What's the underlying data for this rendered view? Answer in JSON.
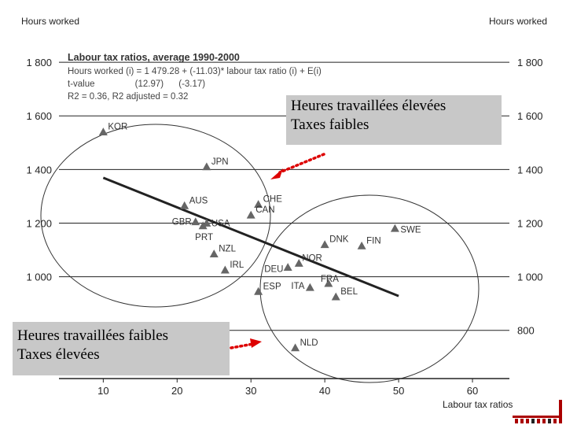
{
  "chart_data": {
    "type": "scatter",
    "title": "Labour tax ratios, average 1990-2000",
    "stats": [
      "Hours worked (i) = 1 479.28 + (-11.03)* labour tax ratio (i) + E(i)",
      "t-value                (12.97)      (-3.17)",
      "R2 = 0.36,  R2 adjusted = 0.32"
    ],
    "ylabel_left": "Hours worked",
    "ylabel_right": "Hours worked",
    "xlabel": "Labour tax ratios",
    "xlim": [
      4,
      65
    ],
    "ylim": [
      620,
      1900
    ],
    "xticks": [
      10,
      20,
      30,
      40,
      50,
      60
    ],
    "yticks": [
      800,
      1000,
      1200,
      1400,
      1600,
      1800
    ],
    "ytick_labels": [
      "800",
      "1 000",
      "1 200",
      "1 400",
      "1 600",
      "1 800"
    ],
    "grid": true,
    "points": [
      {
        "label": "KOR",
        "x": 10,
        "y": 1540
      },
      {
        "label": "JPN",
        "x": 24,
        "y": 1410
      },
      {
        "label": "AUS",
        "x": 21,
        "y": 1265
      },
      {
        "label": "CHE",
        "x": 31,
        "y": 1270
      },
      {
        "label": "CAN",
        "x": 30,
        "y": 1230
      },
      {
        "label": "GBR",
        "x": 22.5,
        "y": 1205
      },
      {
        "label": "USA",
        "x": 24,
        "y": 1200
      },
      {
        "label": "PRT",
        "x": 23.5,
        "y": 1190
      },
      {
        "label": "SWE",
        "x": 49.5,
        "y": 1180
      },
      {
        "label": "DNK",
        "x": 40,
        "y": 1120
      },
      {
        "label": "FIN",
        "x": 45,
        "y": 1115
      },
      {
        "label": "NZL",
        "x": 25,
        "y": 1085
      },
      {
        "label": "NOR",
        "x": 36.5,
        "y": 1050
      },
      {
        "label": "DEU",
        "x": 35,
        "y": 1035
      },
      {
        "label": "IRL",
        "x": 26.5,
        "y": 1025
      },
      {
        "label": "FRA",
        "x": 40.5,
        "y": 975
      },
      {
        "label": "ITA",
        "x": 38,
        "y": 960
      },
      {
        "label": "ESP",
        "x": 31,
        "y": 945
      },
      {
        "label": "BEL",
        "x": 41.5,
        "y": 925
      },
      {
        "label": "NLD",
        "x": 36,
        "y": 735
      }
    ],
    "regression": {
      "intercept": 1479.28,
      "slope": -11.03,
      "x_range": [
        10,
        50
      ]
    }
  },
  "callouts": {
    "high_line1": "Heures travaillées élevées",
    "high_line2": "Taxes faibles",
    "low_line1": "Heures travaillées faibles",
    "low_line2": "Taxes élevées"
  },
  "colors": {
    "marker": "#666666",
    "regression": "#222222",
    "grid": "#222222",
    "arrow": "#dd0000"
  }
}
